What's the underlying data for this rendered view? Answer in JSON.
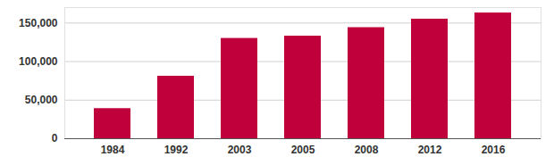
{
  "chart_data": {
    "type": "bar",
    "categories": [
      "1984",
      "1992",
      "2003",
      "2005",
      "2008",
      "2012",
      "2016"
    ],
    "values": [
      39000,
      81000,
      130000,
      133000,
      144000,
      155000,
      163000
    ],
    "color": "#c0003a",
    "ylim": [
      0,
      170000
    ],
    "yticks": [
      0,
      {
        "value": 50000,
        "label": "50,000"
      },
      {
        "value": 100000,
        "label": "100,000"
      },
      {
        "value": 150000,
        "label": "150,000"
      }
    ],
    "grid": true
  }
}
